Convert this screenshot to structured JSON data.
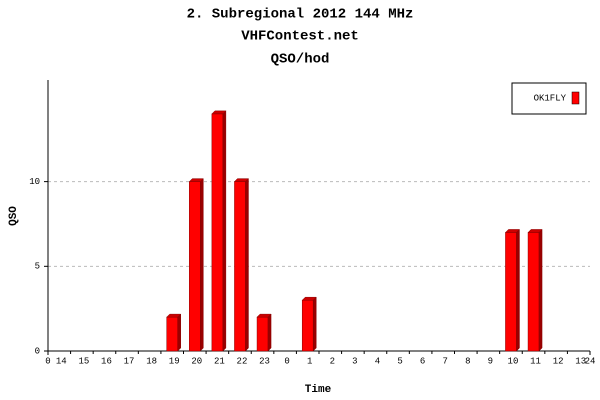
{
  "chart_data": {
    "type": "bar",
    "title": "2. Subregional 2012 144 MHz",
    "subtitle": "VHFContest.net",
    "title2": "QSO/hod",
    "x_label": "Time",
    "y_label": "QSO",
    "categories": [
      "14",
      "15",
      "16",
      "17",
      "18",
      "19",
      "20",
      "21",
      "22",
      "23",
      "0",
      "1",
      "2",
      "3",
      "4",
      "5",
      "6",
      "7",
      "8",
      "9",
      "10",
      "11",
      "12",
      "13"
    ],
    "series": [
      {
        "name": "OK1FLY",
        "color": "#ff0000",
        "values": [
          0,
          0,
          0,
          0,
          0,
          2,
          10,
          14,
          10,
          2,
          0,
          3,
          0,
          0,
          0,
          0,
          0,
          0,
          0,
          0,
          7,
          7,
          0,
          0
        ]
      }
    ],
    "xlim": [
      0,
      24
    ],
    "xticks": [
      0,
      24
    ],
    "ylim": [
      0,
      16
    ],
    "yticks": [
      0,
      5,
      10
    ],
    "grid": true,
    "legend": "top-right"
  }
}
